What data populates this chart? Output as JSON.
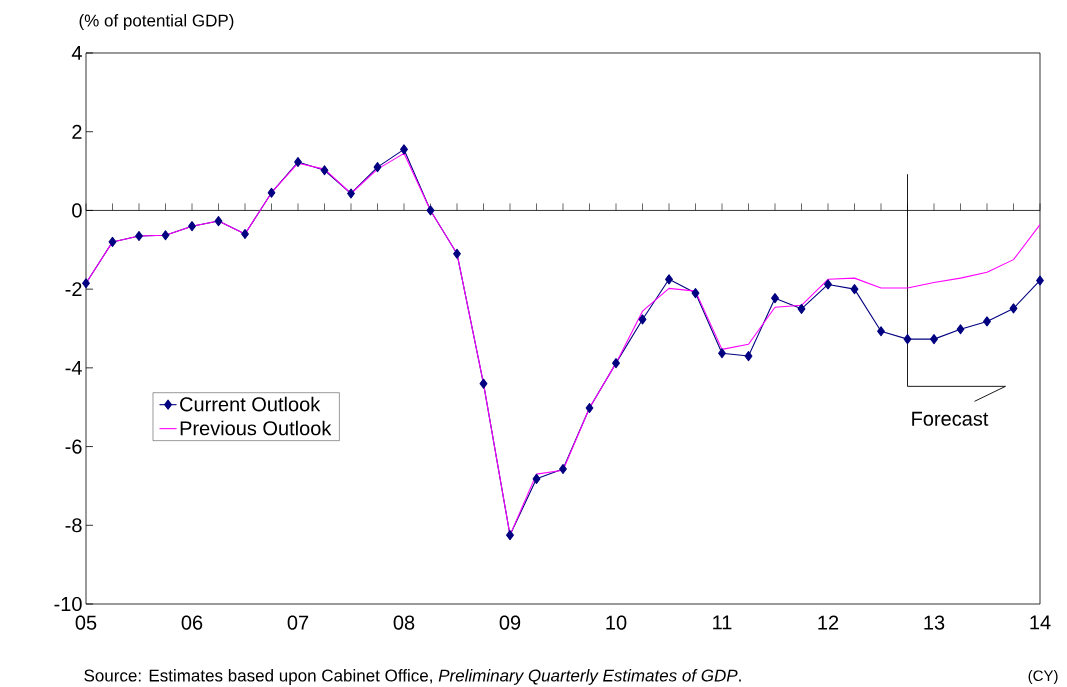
{
  "chart_data": {
    "type": "line",
    "ylabel": "(% of potential GDP)",
    "x": [
      2005,
      2005.25,
      2005.5,
      2005.75,
      2006,
      2006.25,
      2006.5,
      2006.75,
      2007,
      2007.25,
      2007.5,
      2007.75,
      2008,
      2008.25,
      2008.5,
      2008.75,
      2009,
      2009.25,
      2009.5,
      2009.75,
      2010,
      2010.25,
      2010.5,
      2010.75,
      2011,
      2011.25,
      2011.5,
      2011.75,
      2012,
      2012.25,
      2012.5,
      2012.75,
      2013,
      2013.25,
      2013.5,
      2013.75,
      2014
    ],
    "series": [
      {
        "name": "Current Outlook",
        "color": "#000080",
        "marker": "diamond",
        "values": [
          -1.85,
          -0.8,
          -0.65,
          -0.63,
          -0.4,
          -0.27,
          -0.6,
          0.45,
          1.23,
          1.02,
          0.43,
          1.1,
          1.55,
          0,
          -1.1,
          -4.4,
          -8.25,
          -6.82,
          -6.57,
          -5.02,
          -3.88,
          -2.77,
          -1.75,
          -2.1,
          -3.63,
          -3.7,
          -2.23,
          -2.5,
          -1.88,
          -2.0,
          -3.07,
          -3.27,
          -3.27,
          -3.02,
          -2.82,
          -2.49,
          -1.78
        ]
      },
      {
        "name": "Previous Outlook",
        "color": "#ff00ff",
        "marker": "none",
        "values": [
          -1.85,
          -0.8,
          -0.65,
          -0.63,
          -0.4,
          -0.27,
          -0.6,
          0.45,
          1.2,
          1.05,
          0.43,
          1.05,
          1.45,
          0,
          -1.1,
          -4.4,
          -8.25,
          -6.7,
          -6.6,
          -5.02,
          -3.88,
          -2.56,
          -1.98,
          -2.05,
          -3.53,
          -3.4,
          -2.46,
          -2.41,
          -1.75,
          -1.72,
          -1.97,
          -1.97,
          -1.83,
          -1.72,
          -1.57,
          -1.25,
          -0.36
        ]
      }
    ],
    "xlim": [
      2005,
      2014
    ],
    "xticks": [
      {
        "value": 2005,
        "label": "05"
      },
      {
        "value": 2006,
        "label": "06"
      },
      {
        "value": 2007,
        "label": "07"
      },
      {
        "value": 2008,
        "label": "08"
      },
      {
        "value": 2009,
        "label": "09"
      },
      {
        "value": 2010,
        "label": "10"
      },
      {
        "value": 2011,
        "label": "11"
      },
      {
        "value": 2012,
        "label": "12"
      },
      {
        "value": 2013,
        "label": "13"
      },
      {
        "value": 2014,
        "label": "14"
      }
    ],
    "ylim": [
      -10,
      4
    ],
    "yticks": [
      -10,
      -8,
      -6,
      -4,
      -2,
      0,
      2,
      4
    ],
    "legend": "left",
    "line_style": "solid",
    "ref_lines": [
      {
        "axis": "y",
        "value": 0
      },
      {
        "axis": "x",
        "value": 2012.75,
        "label": "Forecast"
      }
    ],
    "annotations": [
      "Source: Estimates based upon Cabinet Office, *Preliminary Quarterly Estimates of GDP*.",
      "(CY)"
    ]
  }
}
